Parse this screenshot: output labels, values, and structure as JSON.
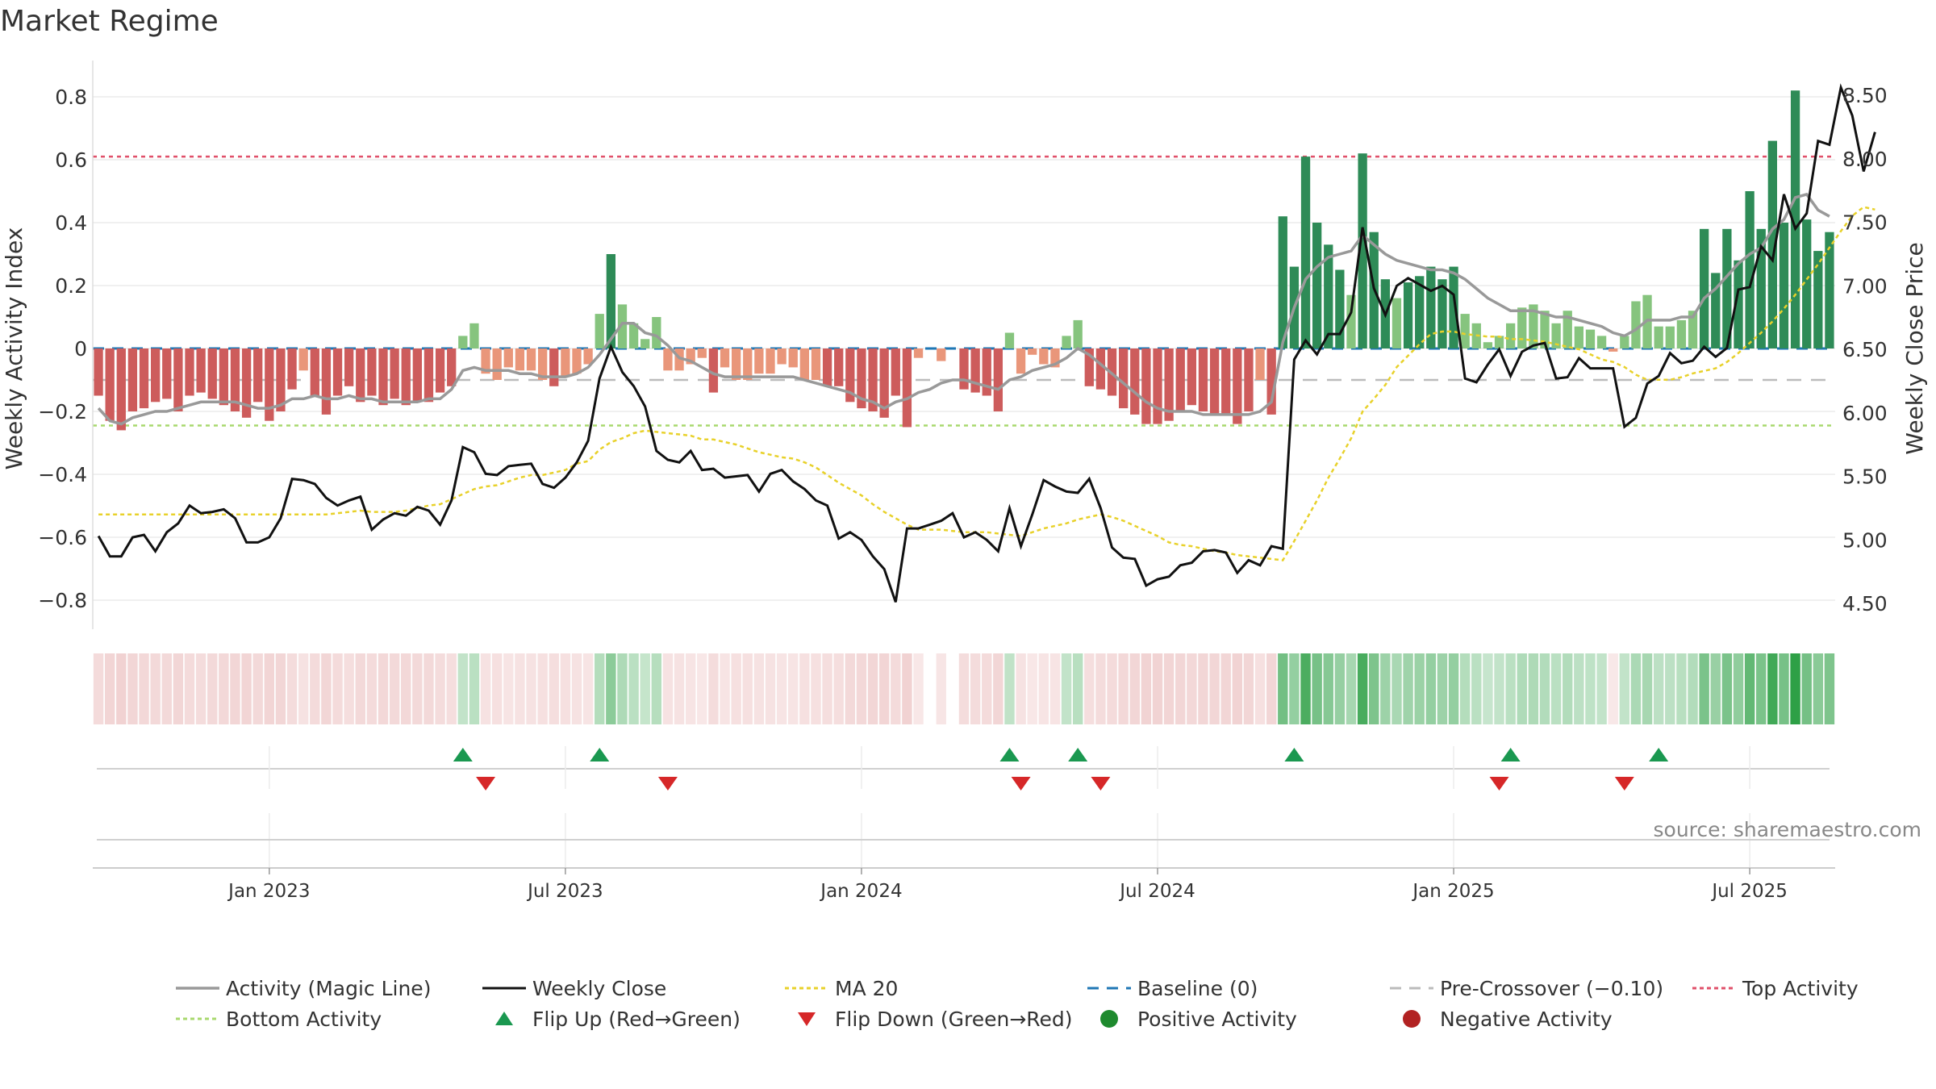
{
  "title": "Market Regime",
  "source": "source: sharemaestro.com",
  "colors": {
    "strong_pos": "#2e8b57",
    "light_pos": "#86c47e",
    "strong_neg": "#cd5c5c",
    "light_neg": "#e9967a",
    "activity_line": "#999999",
    "close_line": "#111111",
    "ma20": "#e8d12a",
    "baseline": "#1f77b4",
    "pre_crossover": "#bbbbbb",
    "top_activity": "#e0506a",
    "bottom_activity": "#a8d86e",
    "flip_up": "#1a9850",
    "flip_down": "#d62728"
  },
  "legend": [
    {
      "label": "Activity (Magic Line)",
      "symbol": "line-solid-gray"
    },
    {
      "label": "Weekly Close",
      "symbol": "line-solid-black"
    },
    {
      "label": "MA 20",
      "symbol": "line-dotted-yellow"
    },
    {
      "label": "Baseline (0)",
      "symbol": "line-dashed-blue"
    },
    {
      "label": "Pre-Crossover (−0.10)",
      "symbol": "line-dashed-gray"
    },
    {
      "label": "Top Activity",
      "symbol": "line-dotted-red"
    },
    {
      "label": "Bottom Activity",
      "symbol": "line-dotted-green"
    },
    {
      "label": "Flip Up (Red→Green)",
      "symbol": "triangle-up"
    },
    {
      "label": "Flip Down (Green→Red)",
      "symbol": "triangle-down"
    },
    {
      "label": "Positive Activity",
      "symbol": "circle-green"
    },
    {
      "label": "Negative Activity",
      "symbol": "circle-red"
    }
  ],
  "chart_data": {
    "type": "bar",
    "xlabel": "",
    "ylabel_left": "Weekly Activity Index",
    "ylabel_right": "Weekly Close Price",
    "y_left_ticks": [
      -0.8,
      -0.6,
      -0.4,
      -0.2,
      0,
      0.2,
      0.4,
      0.6,
      0.8
    ],
    "y_right_ticks": [
      "4.50",
      "5.00",
      "5.50",
      "6.00",
      "6.50",
      "7.00",
      "7.50",
      "8.00",
      "8.50"
    ],
    "ylim_left": [
      -0.9,
      0.9
    ],
    "ylim_right": [
      4.35,
      8.6
    ],
    "x_tick_labels": [
      "Jan 2023",
      "Jul 2023",
      "Jan 2024",
      "Jul 2024",
      "Jan 2025",
      "Jul 2025"
    ],
    "x_tick_weeks": [
      15,
      41,
      67,
      93,
      119,
      145
    ],
    "reference_lines": {
      "top_activity": 0.61,
      "bottom_activity": -0.245,
      "pre_crossover": -0.1,
      "baseline": 0
    },
    "activity": [
      -0.15,
      -0.23,
      -0.26,
      -0.2,
      -0.19,
      -0.17,
      -0.16,
      -0.2,
      -0.15,
      -0.14,
      -0.16,
      -0.18,
      -0.2,
      -0.22,
      -0.17,
      -0.23,
      -0.2,
      -0.13,
      -0.07,
      -0.15,
      -0.21,
      -0.15,
      -0.12,
      -0.17,
      -0.15,
      -0.18,
      -0.16,
      -0.18,
      -0.17,
      -0.17,
      -0.14,
      -0.12,
      0.04,
      0.08,
      -0.08,
      -0.1,
      -0.06,
      -0.07,
      -0.07,
      -0.1,
      -0.12,
      -0.09,
      -0.08,
      -0.05,
      0.11,
      0.3,
      0.14,
      0.08,
      0.03,
      0.1,
      -0.07,
      -0.07,
      -0.05,
      -0.03,
      -0.14,
      -0.06,
      -0.1,
      -0.1,
      -0.08,
      -0.08,
      -0.05,
      -0.06,
      -0.1,
      -0.1,
      -0.12,
      -0.12,
      -0.17,
      -0.19,
      -0.2,
      -0.22,
      -0.15,
      -0.25,
      -0.03,
      0.0,
      -0.04,
      0.0,
      -0.13,
      -0.14,
      -0.15,
      -0.2,
      0.05,
      -0.08,
      -0.02,
      -0.05,
      -0.06,
      0.04,
      0.09,
      -0.12,
      -0.13,
      -0.15,
      -0.19,
      -0.21,
      -0.24,
      -0.24,
      -0.23,
      -0.2,
      -0.18,
      -0.2,
      -0.21,
      -0.21,
      -0.24,
      -0.2,
      -0.1,
      -0.21,
      0.42,
      0.26,
      0.61,
      0.4,
      0.33,
      0.25,
      0.17,
      0.62,
      0.37,
      0.22,
      0.16,
      0.21,
      0.23,
      0.26,
      0.22,
      0.26,
      0.11,
      0.08,
      0.02,
      0.04,
      0.08,
      0.13,
      0.14,
      0.12,
      0.08,
      0.12,
      0.07,
      0.06,
      0.04,
      -0.01,
      0.04,
      0.15,
      0.17,
      0.07,
      0.07,
      0.09,
      0.12,
      0.38,
      0.24,
      0.38,
      0.28,
      0.5,
      0.38,
      0.66,
      0.4,
      0.82,
      0.41,
      0.31,
      0.37
    ],
    "activity_line": [
      -0.19,
      -0.23,
      -0.24,
      -0.22,
      -0.21,
      -0.2,
      -0.2,
      -0.19,
      -0.18,
      -0.17,
      -0.17,
      -0.17,
      -0.17,
      -0.18,
      -0.19,
      -0.19,
      -0.18,
      -0.16,
      -0.16,
      -0.15,
      -0.16,
      -0.16,
      -0.15,
      -0.16,
      -0.16,
      -0.17,
      -0.17,
      -0.17,
      -0.17,
      -0.16,
      -0.16,
      -0.13,
      -0.07,
      -0.06,
      -0.07,
      -0.07,
      -0.07,
      -0.08,
      -0.08,
      -0.09,
      -0.09,
      -0.09,
      -0.08,
      -0.06,
      -0.02,
      0.03,
      0.08,
      0.08,
      0.05,
      0.04,
      0.01,
      -0.03,
      -0.04,
      -0.06,
      -0.08,
      -0.09,
      -0.09,
      -0.09,
      -0.09,
      -0.09,
      -0.09,
      -0.09,
      -0.1,
      -0.11,
      -0.12,
      -0.13,
      -0.14,
      -0.16,
      -0.17,
      -0.19,
      -0.17,
      -0.16,
      -0.14,
      -0.13,
      -0.11,
      -0.1,
      -0.1,
      -0.11,
      -0.12,
      -0.13,
      -0.1,
      -0.09,
      -0.07,
      -0.06,
      -0.05,
      -0.03,
      0.0,
      -0.02,
      -0.05,
      -0.08,
      -0.11,
      -0.14,
      -0.17,
      -0.19,
      -0.2,
      -0.2,
      -0.2,
      -0.21,
      -0.21,
      -0.21,
      -0.21,
      -0.21,
      -0.2,
      -0.17,
      0.02,
      0.13,
      0.22,
      0.26,
      0.29,
      0.3,
      0.31,
      0.36,
      0.33,
      0.3,
      0.28,
      0.27,
      0.26,
      0.25,
      0.25,
      0.24,
      0.22,
      0.19,
      0.16,
      0.14,
      0.12,
      0.12,
      0.12,
      0.11,
      0.1,
      0.1,
      0.09,
      0.08,
      0.07,
      0.05,
      0.04,
      0.06,
      0.09,
      0.09,
      0.09,
      0.1,
      0.1,
      0.16,
      0.19,
      0.23,
      0.27,
      0.3,
      0.32,
      0.38,
      0.41,
      0.48,
      0.49,
      0.44,
      0.42
    ],
    "weekly_close": [
      5.03,
      4.87,
      4.87,
      5.02,
      5.04,
      4.91,
      5.06,
      5.13,
      5.27,
      5.21,
      5.22,
      5.24,
      5.17,
      4.98,
      4.98,
      5.02,
      5.17,
      5.48,
      5.47,
      5.44,
      5.33,
      5.27,
      5.31,
      5.34,
      5.08,
      5.16,
      5.21,
      5.19,
      5.26,
      5.23,
      5.12,
      5.31,
      5.73,
      5.69,
      5.52,
      5.51,
      5.58,
      5.59,
      5.6,
      5.44,
      5.41,
      5.49,
      5.61,
      5.78,
      6.27,
      6.52,
      6.32,
      6.21,
      6.05,
      5.7,
      5.63,
      5.61,
      5.7,
      5.55,
      5.56,
      5.49,
      5.5,
      5.51,
      5.38,
      5.52,
      5.55,
      5.46,
      5.4,
      5.31,
      5.27,
      5.01,
      5.06,
      5.0,
      4.87,
      4.77,
      4.51,
      5.09,
      5.09,
      5.12,
      5.15,
      5.21,
      5.02,
      5.06,
      5.0,
      4.91,
      5.25,
      4.95,
      5.2,
      5.47,
      5.42,
      5.38,
      5.37,
      5.48,
      5.25,
      4.94,
      4.86,
      4.85,
      4.64,
      4.69,
      4.71,
      4.8,
      4.82,
      4.91,
      4.92,
      4.9,
      4.74,
      4.84,
      4.8,
      4.95,
      4.93,
      6.42,
      6.57,
      6.46,
      6.62,
      6.62,
      6.79,
      7.46,
      6.98,
      6.77,
      7.0,
      7.06,
      7.01,
      6.96,
      7.0,
      6.93,
      6.27,
      6.24,
      6.38,
      6.5,
      6.29,
      6.48,
      6.53,
      6.55,
      6.27,
      6.28,
      6.43,
      6.35,
      6.35,
      6.35,
      5.89,
      5.96,
      6.23,
      6.29,
      6.47,
      6.39,
      6.41,
      6.52,
      6.44,
      6.51,
      6.97,
      6.99,
      7.31,
      7.2,
      7.72,
      7.45,
      7.57,
      8.14,
      8.11,
      8.56,
      8.34,
      7.9,
      8.21
    ],
    "ma20": [
      5.2,
      5.2,
      5.2,
      5.2,
      5.2,
      5.2,
      5.2,
      5.2,
      5.2,
      5.2,
      5.2,
      5.2,
      5.2,
      5.2,
      5.2,
      5.2,
      5.2,
      5.2,
      5.2,
      5.2,
      5.2,
      5.21,
      5.22,
      5.23,
      5.22,
      5.22,
      5.22,
      5.23,
      5.25,
      5.27,
      5.28,
      5.32,
      5.36,
      5.4,
      5.42,
      5.43,
      5.46,
      5.49,
      5.51,
      5.51,
      5.53,
      5.55,
      5.6,
      5.62,
      5.71,
      5.77,
      5.8,
      5.84,
      5.86,
      5.85,
      5.84,
      5.83,
      5.82,
      5.79,
      5.79,
      5.77,
      5.75,
      5.72,
      5.69,
      5.67,
      5.65,
      5.64,
      5.61,
      5.57,
      5.51,
      5.45,
      5.4,
      5.35,
      5.28,
      5.22,
      5.17,
      5.12,
      5.08,
      5.08,
      5.08,
      5.07,
      5.06,
      5.06,
      5.06,
      5.05,
      5.04,
      5.03,
      5.06,
      5.09,
      5.11,
      5.13,
      5.16,
      5.18,
      5.2,
      5.18,
      5.15,
      5.11,
      5.07,
      5.03,
      4.98,
      4.96,
      4.95,
      4.93,
      4.91,
      4.9,
      4.88,
      4.87,
      4.86,
      4.85,
      4.84,
      4.99,
      5.15,
      5.31,
      5.49,
      5.64,
      5.8,
      6.01,
      6.11,
      6.22,
      6.36,
      6.45,
      6.54,
      6.62,
      6.64,
      6.64,
      6.62,
      6.61,
      6.6,
      6.6,
      6.58,
      6.58,
      6.57,
      6.56,
      6.54,
      6.52,
      6.5,
      6.46,
      6.42,
      6.4,
      6.36,
      6.3,
      6.26,
      6.26,
      6.26,
      6.28,
      6.31,
      6.33,
      6.35,
      6.4,
      6.47,
      6.55,
      6.63,
      6.72,
      6.82,
      6.93,
      7.05,
      7.17,
      7.3,
      7.43,
      7.55,
      7.62,
      7.6
    ],
    "flip_up_weeks": [
      32,
      44,
      80,
      86,
      105,
      124,
      137
    ],
    "flip_down_weeks": [
      34,
      50,
      81,
      88,
      123,
      134
    ]
  }
}
